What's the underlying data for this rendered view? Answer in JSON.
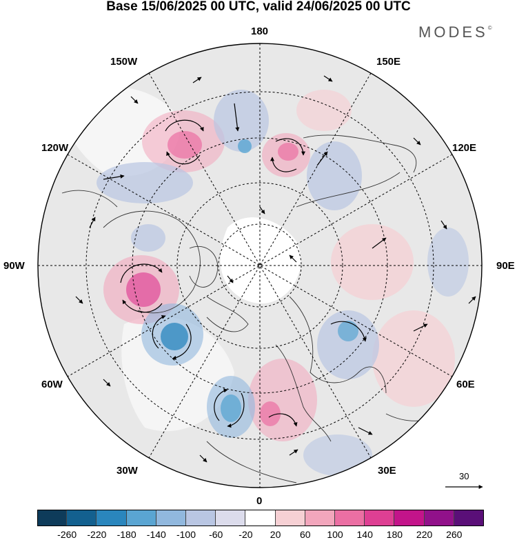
{
  "title": "Base 15/06/2025 00 UTC, valid 24/06/2025 00 UTC",
  "brand": {
    "name": "MODES",
    "mark": "©"
  },
  "map": {
    "projection": "north polar stereographic",
    "meridian_labels": {
      "m180": "180",
      "m150W": "150W",
      "m150E": "150E",
      "m120W": "120W",
      "m120E": "120E",
      "m90W": "90W",
      "m90E": "90E",
      "m60W": "60W",
      "m60E": "60E",
      "m30W": "30W",
      "m30E": "30E",
      "m0": "0"
    },
    "fill_colors": {
      "land_background": "#e7e7e7",
      "ocean_background": "#ffffff"
    }
  },
  "vector_scale": {
    "label": "30"
  },
  "colorbar": {
    "labels": [
      "-260",
      "-220",
      "-180",
      "-140",
      "-100",
      "-60",
      "-20",
      "20",
      "60",
      "100",
      "140",
      "180",
      "220",
      "260"
    ],
    "colors": [
      "#0e3b5a",
      "#13608f",
      "#2a86bd",
      "#5aa5d2",
      "#91b8de",
      "#b9c6e3",
      "#dcdcec",
      "#ffffff",
      "#f6d0d4",
      "#f2a6bc",
      "#eb6fa3",
      "#de3f93",
      "#c3148a",
      "#91118a",
      "#5a0f78"
    ]
  }
}
